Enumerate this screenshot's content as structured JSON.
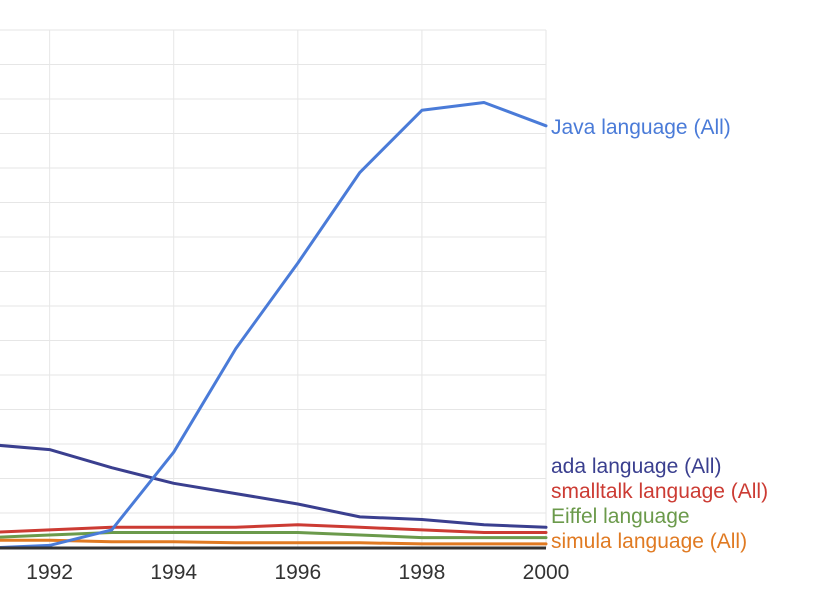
{
  "chart_data": {
    "type": "line",
    "x": [
      1991,
      1992,
      1993,
      1994,
      1995,
      1996,
      1997,
      1998,
      1999,
      2000
    ],
    "xlim": [
      1991.2,
      2000
    ],
    "ylim": [
      0,
      100
    ],
    "x_ticks": [
      "1992",
      "1994",
      "1996",
      "1998",
      "2000"
    ],
    "grid": true,
    "legend": "inline-right",
    "series": [
      {
        "name": "Java language (All)",
        "color": "#4a7bd8",
        "values": [
          0,
          0.5,
          3.5,
          18.5,
          38.5,
          55.0,
          72.5,
          84.5,
          86.0,
          81.5
        ]
      },
      {
        "name": "ada language (All)",
        "color": "#3a3f8f",
        "values": [
          20.0,
          19.0,
          15.5,
          12.5,
          10.5,
          8.5,
          6.0,
          5.5,
          4.5,
          4.0
        ]
      },
      {
        "name": "smalltalk language (All)",
        "color": "#cc3b33",
        "values": [
          3.0,
          3.5,
          4.0,
          4.0,
          4.0,
          4.5,
          4.0,
          3.5,
          3.0,
          3.0
        ]
      },
      {
        "name": "Eiffel language",
        "color": "#6b9a4b",
        "values": [
          2.0,
          2.5,
          3.0,
          3.0,
          3.0,
          3.0,
          2.5,
          2.0,
          2.0,
          2.0
        ]
      },
      {
        "name": "simula language (All)",
        "color": "#e07a22",
        "values": [
          1.5,
          1.5,
          1.2,
          1.2,
          1.0,
          1.0,
          1.0,
          0.8,
          0.8,
          0.8
        ]
      }
    ]
  }
}
